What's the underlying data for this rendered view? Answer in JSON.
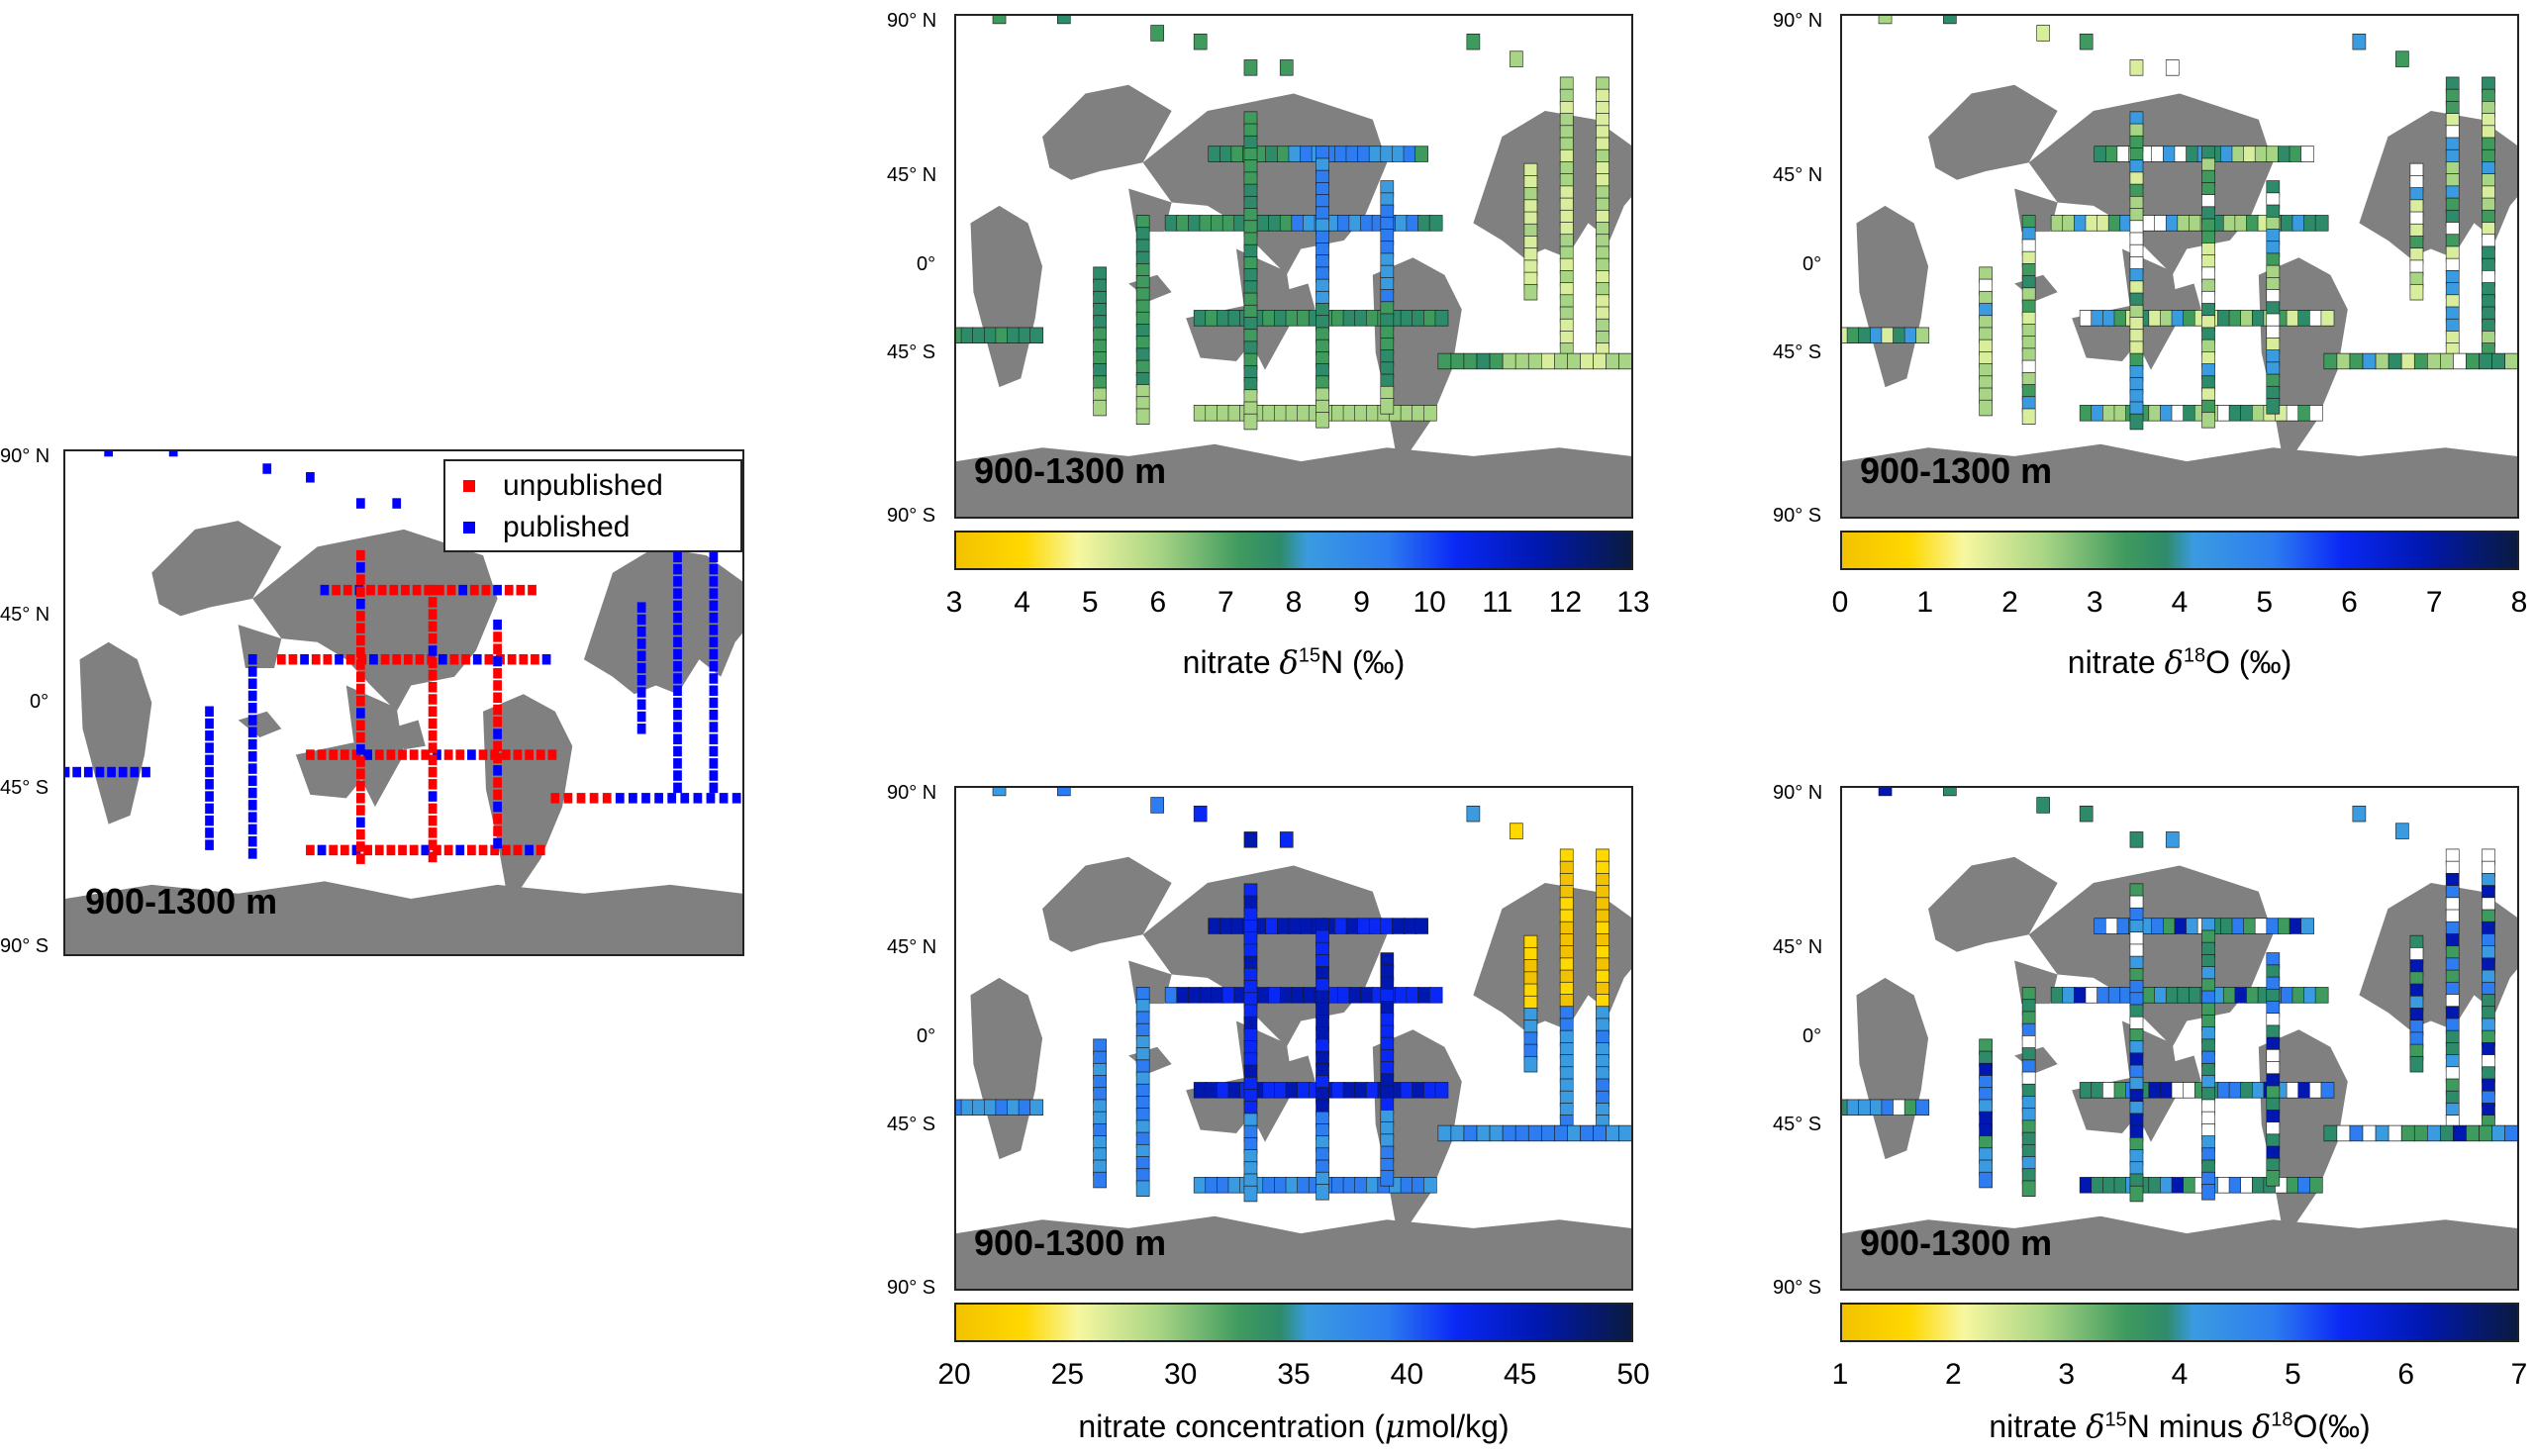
{
  "lat_labels": {
    "n90": "90° N",
    "n45": "45° N",
    "eq": "0°",
    "s45": "45° S",
    "s90": "90° S"
  },
  "depth_label": "900-1300 m",
  "legend": {
    "unpublished": "unpublished",
    "published": "published"
  },
  "colors": {
    "unpublished": "#ff0000",
    "published": "#0000ff",
    "land": "#808080",
    "ocean": "#ffffff"
  },
  "panels": {
    "d15n": {
      "ticks": [
        "3",
        "4",
        "5",
        "6",
        "7",
        "8",
        "9",
        "10",
        "11",
        "12",
        "13"
      ],
      "label_prefix": "nitrate ",
      "label_delta": "δ",
      "label_sup": "15",
      "label_suffix": "N (‰)"
    },
    "d18o": {
      "ticks": [
        "0",
        "1",
        "2",
        "3",
        "4",
        "5",
        "6",
        "7",
        "8"
      ],
      "label_prefix": "nitrate ",
      "label_delta": "δ",
      "label_sup": "18",
      "label_suffix": "O (‰)"
    },
    "conc": {
      "ticks": [
        "20",
        "25",
        "30",
        "35",
        "40",
        "45",
        "50"
      ],
      "label_prefix": "nitrate concentration (",
      "label_mu": "μ",
      "label_suffix": "mol/kg)"
    },
    "diff": {
      "ticks": [
        "1",
        "2",
        "3",
        "4",
        "5",
        "6",
        "7"
      ],
      "label_prefix": "nitrate ",
      "label_delta": "δ",
      "label_sup": "15",
      "label_mid": "N minus ",
      "label_delta2": "δ",
      "label_sup2": "18",
      "label_suffix": "O(‰)"
    }
  }
}
